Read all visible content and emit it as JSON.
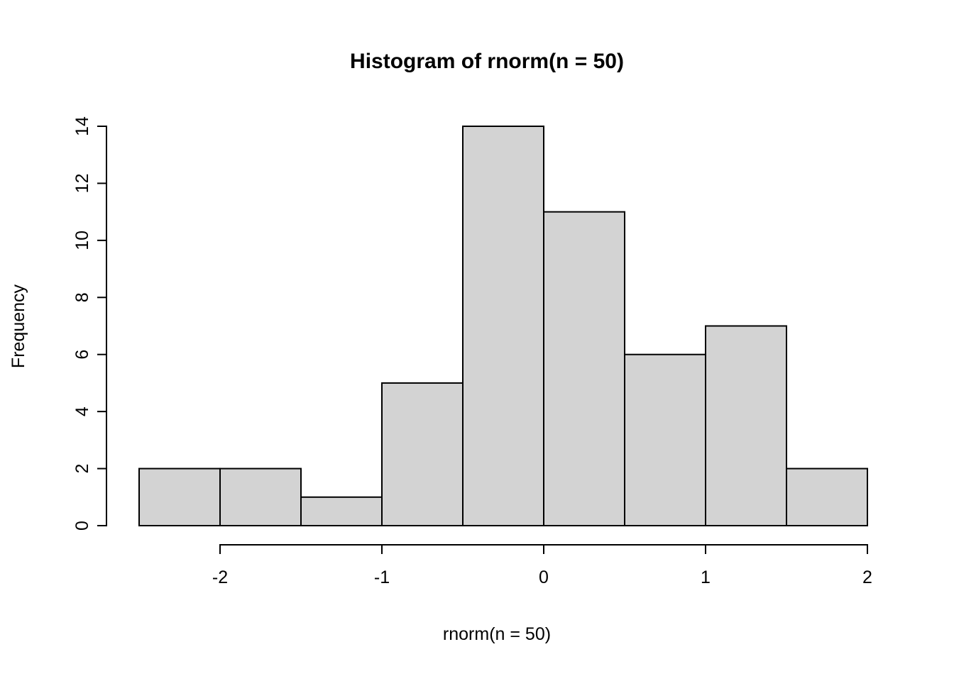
{
  "figure": {
    "background": "#ffffff"
  },
  "chart_data": {
    "type": "bar",
    "kind": "histogram",
    "title": "Histogram of rnorm(n = 50)",
    "xlabel": "rnorm(n = 50)",
    "ylabel": "Frequency",
    "bin_edges": [
      -2.5,
      -2.0,
      -1.5,
      -1.0,
      -0.5,
      0.0,
      0.5,
      1.0,
      1.5,
      2.0
    ],
    "counts": [
      2,
      2,
      1,
      5,
      14,
      11,
      6,
      7,
      2
    ],
    "total_n": 50,
    "x_ticks": [
      -2,
      -1,
      0,
      1,
      2
    ],
    "y_ticks": [
      0,
      2,
      4,
      6,
      8,
      10,
      12,
      14
    ],
    "xlim": [
      -2.5,
      2.0
    ],
    "ylim": [
      0,
      14
    ],
    "grid": "off",
    "legend": "none",
    "bar_fill": "#d3d3d3",
    "bar_stroke": "#000000",
    "axis_color": "#000000"
  }
}
